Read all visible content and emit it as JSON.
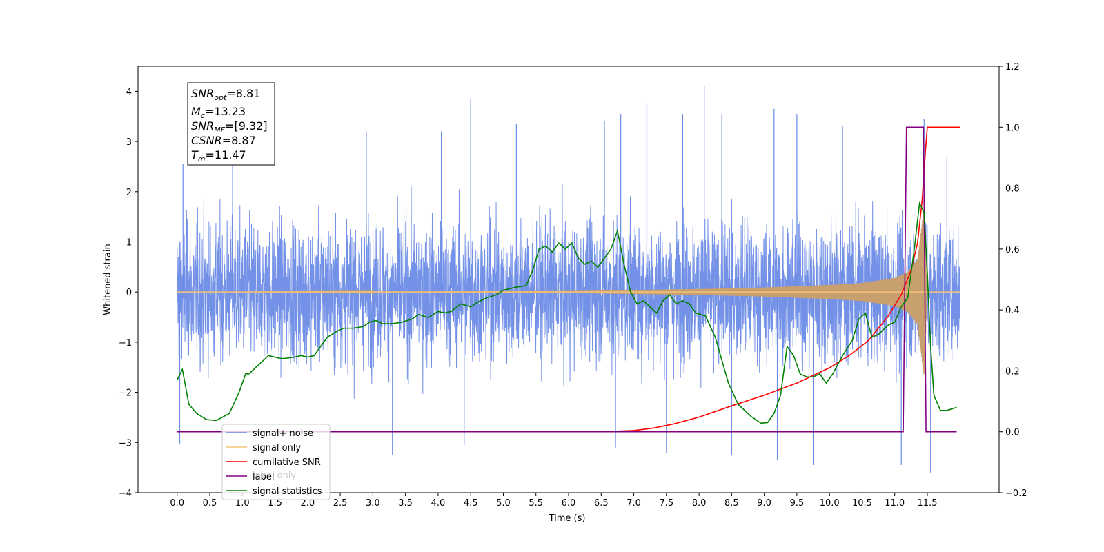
{
  "chart_data": {
    "type": "line",
    "xlabel": "Time (s)",
    "ylabel": "Whitened strain",
    "xlim": [
      -0.6,
      12.6
    ],
    "ylim": [
      -4,
      4.5
    ],
    "y2lim": [
      -0.2,
      1.2
    ],
    "x_ticks": [
      "0.0",
      "0.5",
      "1.0",
      "1.5",
      "2.0",
      "2.5",
      "3.0",
      "3.5",
      "4.0",
      "4.5",
      "5.0",
      "5.5",
      "6.0",
      "6.5",
      "7.0",
      "7.5",
      "8.0",
      "8.5",
      "9.0",
      "9.5",
      "10.0",
      "10.5",
      "11.0",
      "11.5"
    ],
    "y_ticks": [
      "−4",
      "−3",
      "−2",
      "−1",
      "0",
      "1",
      "2",
      "3",
      "4"
    ],
    "y2_ticks": [
      "−0.2",
      "0.0",
      "0.2",
      "0.4",
      "0.6",
      "0.8",
      "1.0",
      "1.2"
    ],
    "annotation": {
      "lines": [
        {
          "sym": "SNR",
          "sub": "opt",
          "val": "=8.81"
        },
        {
          "sym": "M",
          "sub": "c",
          "val": "=13.23"
        },
        {
          "sym": "SNR",
          "sub": "MF",
          "val": "=[9.32]"
        },
        {
          "sym": "CSNR",
          "sub": "",
          "val": "=8.87"
        },
        {
          "sym": "T",
          "sub": "m",
          "val": "=11.47"
        }
      ]
    },
    "legend": {
      "placement": "lower-left",
      "entries": [
        {
          "label": "signal+ noise",
          "color": "#6b8be6"
        },
        {
          "label": "signal only",
          "color": "#f5c37a"
        },
        {
          "label": "cumilative SNR",
          "color": "#ff0000"
        },
        {
          "label": "label",
          "color": "#800080"
        },
        {
          "label": "signal statistics",
          "color": "#008000"
        }
      ],
      "ghost_text": "label only"
    },
    "series": [
      {
        "name": "signal+ noise",
        "axis": "left",
        "color": "#6b8be6",
        "x_range": [
          0.0,
          12.0
        ],
        "envelope_low_quantile": -2.0,
        "envelope_high_quantile": 2.0,
        "peaks": [
          {
            "x": 0.09,
            "y": 2.55
          },
          {
            "x": 0.04,
            "y": -3.02
          },
          {
            "x": 0.85,
            "y": 2.7
          },
          {
            "x": 2.9,
            "y": 3.2
          },
          {
            "x": 3.3,
            "y": -3.25
          },
          {
            "x": 4.05,
            "y": 3.2
          },
          {
            "x": 4.5,
            "y": 3.85
          },
          {
            "x": 4.4,
            "y": -3.05
          },
          {
            "x": 5.2,
            "y": 3.35
          },
          {
            "x": 6.55,
            "y": 3.4
          },
          {
            "x": 6.72,
            "y": -3.1
          },
          {
            "x": 6.8,
            "y": 3.55
          },
          {
            "x": 7.2,
            "y": 3.75
          },
          {
            "x": 7.5,
            "y": -3.2
          },
          {
            "x": 7.75,
            "y": 3.55
          },
          {
            "x": 8.08,
            "y": 4.1
          },
          {
            "x": 8.35,
            "y": 3.55
          },
          {
            "x": 8.5,
            "y": -3.25
          },
          {
            "x": 9.2,
            "y": -3.35
          },
          {
            "x": 9.15,
            "y": 3.65
          },
          {
            "x": 9.5,
            "y": 3.55
          },
          {
            "x": 9.75,
            "y": -3.45
          },
          {
            "x": 10.2,
            "y": 3.3
          },
          {
            "x": 11.1,
            "y": -3.45
          },
          {
            "x": 11.45,
            "y": 3.45
          },
          {
            "x": 11.55,
            "y": -3.6
          },
          {
            "x": 11.8,
            "y": 2.7
          }
        ]
      },
      {
        "name": "signal only",
        "axis": "left",
        "color": "#f5c37a",
        "x": [
          0.0,
          6.0,
          7.0,
          8.0,
          9.0,
          10.0,
          10.5,
          11.0,
          11.2,
          11.35,
          11.45,
          11.5,
          12.0
        ],
        "amplitude": [
          0.0,
          0.02,
          0.04,
          0.06,
          0.09,
          0.14,
          0.18,
          0.28,
          0.4,
          0.65,
          1.7,
          0.0,
          0.0
        ]
      },
      {
        "name": "cumilative SNR",
        "axis": "right",
        "color": "#ff0000",
        "x": [
          0.0,
          6.5,
          7.0,
          7.3,
          7.6,
          8.0,
          8.5,
          9.0,
          9.5,
          10.0,
          10.3,
          10.6,
          10.9,
          11.1,
          11.25,
          11.35,
          11.42,
          11.47,
          11.5,
          12.0
        ],
        "values": [
          0.0,
          0.0,
          0.004,
          0.012,
          0.025,
          0.048,
          0.085,
          0.12,
          0.16,
          0.21,
          0.25,
          0.3,
          0.38,
          0.45,
          0.53,
          0.62,
          0.76,
          0.92,
          1.0,
          1.0
        ]
      },
      {
        "name": "label",
        "axis": "right",
        "color": "#800080",
        "x": [
          0.0,
          11.13,
          11.18,
          11.44,
          11.48,
          11.95
        ],
        "values": [
          0.0,
          0.0,
          1.0,
          1.0,
          0.0,
          0.0
        ]
      },
      {
        "name": "signal statistics",
        "axis": "right",
        "color": "#008000",
        "x": [
          0.0,
          0.08,
          0.18,
          0.3,
          0.45,
          0.6,
          0.8,
          0.95,
          1.05,
          1.1,
          1.2,
          1.3,
          1.4,
          1.5,
          1.6,
          1.7,
          1.8,
          1.9,
          2.0,
          2.1,
          2.2,
          2.3,
          2.45,
          2.55,
          2.7,
          2.85,
          2.95,
          3.05,
          3.15,
          3.3,
          3.45,
          3.6,
          3.7,
          3.85,
          4.0,
          4.1,
          4.2,
          4.35,
          4.5,
          4.6,
          4.75,
          4.9,
          5.0,
          5.1,
          5.2,
          5.35,
          5.45,
          5.55,
          5.65,
          5.75,
          5.85,
          5.95,
          6.05,
          6.15,
          6.25,
          6.35,
          6.45,
          6.55,
          6.65,
          6.75,
          6.85,
          6.95,
          7.05,
          7.15,
          7.25,
          7.35,
          7.45,
          7.55,
          7.65,
          7.75,
          7.85,
          7.95,
          8.1,
          8.25,
          8.45,
          8.6,
          8.8,
          8.95,
          9.05,
          9.15,
          9.25,
          9.35,
          9.45,
          9.55,
          9.65,
          9.75,
          9.85,
          9.95,
          10.05,
          10.2,
          10.35,
          10.45,
          10.55,
          10.65,
          10.75,
          10.9,
          11.0,
          11.1,
          11.2,
          11.3,
          11.38,
          11.45,
          11.5,
          11.55,
          11.6,
          11.7,
          11.8,
          11.95
        ],
        "values": [
          0.17,
          0.205,
          0.09,
          0.06,
          0.04,
          0.037,
          0.06,
          0.13,
          0.19,
          0.19,
          0.21,
          0.23,
          0.25,
          0.245,
          0.24,
          0.242,
          0.245,
          0.25,
          0.245,
          0.25,
          0.28,
          0.31,
          0.33,
          0.34,
          0.34,
          0.345,
          0.36,
          0.365,
          0.355,
          0.355,
          0.36,
          0.37,
          0.385,
          0.375,
          0.395,
          0.39,
          0.395,
          0.42,
          0.41,
          0.425,
          0.44,
          0.45,
          0.465,
          0.47,
          0.475,
          0.48,
          0.53,
          0.6,
          0.61,
          0.59,
          0.62,
          0.6,
          0.62,
          0.57,
          0.55,
          0.56,
          0.54,
          0.57,
          0.6,
          0.66,
          0.55,
          0.46,
          0.42,
          0.43,
          0.41,
          0.39,
          0.43,
          0.45,
          0.42,
          0.43,
          0.42,
          0.39,
          0.38,
          0.31,
          0.16,
          0.09,
          0.05,
          0.028,
          0.03,
          0.06,
          0.12,
          0.28,
          0.25,
          0.19,
          0.18,
          0.18,
          0.19,
          0.16,
          0.19,
          0.25,
          0.3,
          0.37,
          0.39,
          0.31,
          0.32,
          0.35,
          0.36,
          0.41,
          0.44,
          0.6,
          0.75,
          0.72,
          0.52,
          0.28,
          0.12,
          0.07,
          0.07,
          0.08
        ]
      }
    ]
  }
}
